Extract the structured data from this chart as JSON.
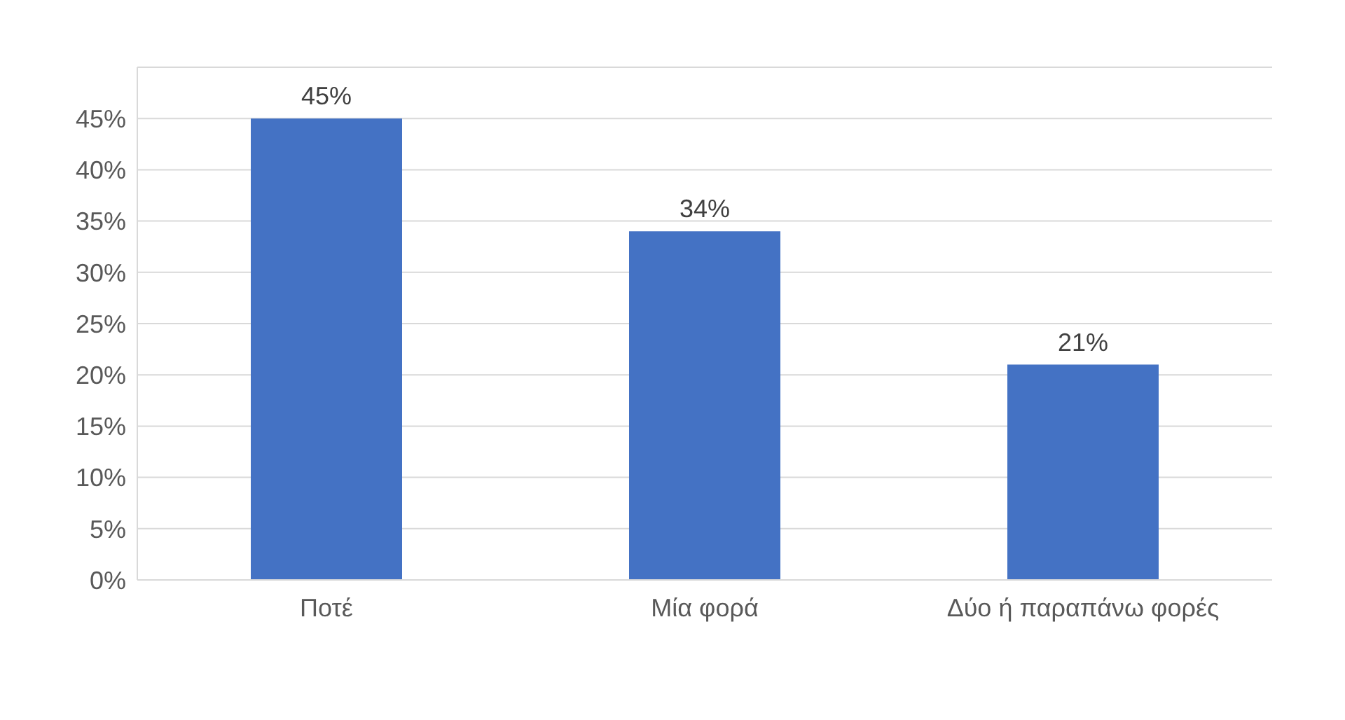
{
  "chart_data": {
    "type": "bar",
    "categories": [
      "Ποτέ",
      "Μία φορά",
      "Δύο ή παραπάνω φορές"
    ],
    "values": [
      45,
      34,
      21
    ],
    "value_labels": [
      "45%",
      "34%",
      "21%"
    ],
    "color": "#4472c4",
    "ylim": [
      0,
      50
    ],
    "yticks": [
      {
        "value": 0,
        "label": "0%"
      },
      {
        "value": 5,
        "label": "5%"
      },
      {
        "value": 10,
        "label": "10%"
      },
      {
        "value": 15,
        "label": "15%"
      },
      {
        "value": 20,
        "label": "20%"
      },
      {
        "value": 25,
        "label": "25%"
      },
      {
        "value": 30,
        "label": "30%"
      },
      {
        "value": 35,
        "label": "35%"
      },
      {
        "value": 40,
        "label": "40%"
      },
      {
        "value": 45,
        "label": "45%"
      },
      {
        "value": 50,
        "label": null
      }
    ],
    "grid": "y"
  }
}
